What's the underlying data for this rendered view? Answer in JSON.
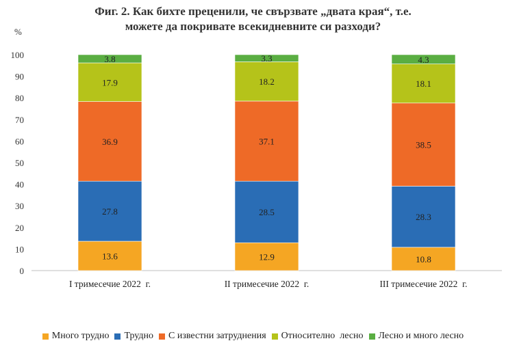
{
  "title_line1": "Фиг. 2. Как бихте преценили, че свързвате „двата края“, т.е.",
  "title_line2": "можете да покривате всекидневните си разходи?",
  "chart_data": {
    "type": "bar",
    "stacked": true,
    "title": "Фиг. 2. Как бихте преценили, че свързвате „двата края“, т.е. можете да покривате всекидневните си разходи?",
    "ylabel": "%",
    "xlabel": "",
    "ylim": [
      0,
      100
    ],
    "yticks": [
      0,
      10,
      20,
      30,
      40,
      50,
      60,
      70,
      80,
      90,
      100
    ],
    "grid": false,
    "legend_position": "bottom",
    "categories": [
      "I тримесечие 2022  г.",
      "II тримесечие 2022  г.",
      "III тримесечие 2022  г."
    ],
    "series": [
      {
        "name": "Много трудно",
        "color": "#F5A623",
        "values": [
          13.6,
          12.9,
          10.8
        ]
      },
      {
        "name": "Трудно",
        "color": "#2A6DB5",
        "values": [
          27.8,
          28.5,
          28.3
        ]
      },
      {
        "name": "С известни затруднения",
        "color": "#EE6A27",
        "values": [
          36.9,
          37.1,
          38.5
        ]
      },
      {
        "name": "Относително  лесно",
        "color": "#B5C31A",
        "values": [
          17.9,
          18.2,
          18.1
        ]
      },
      {
        "name": "Лесно и много лесно",
        "color": "#5AAE42",
        "values": [
          3.8,
          3.3,
          4.3
        ]
      }
    ]
  }
}
